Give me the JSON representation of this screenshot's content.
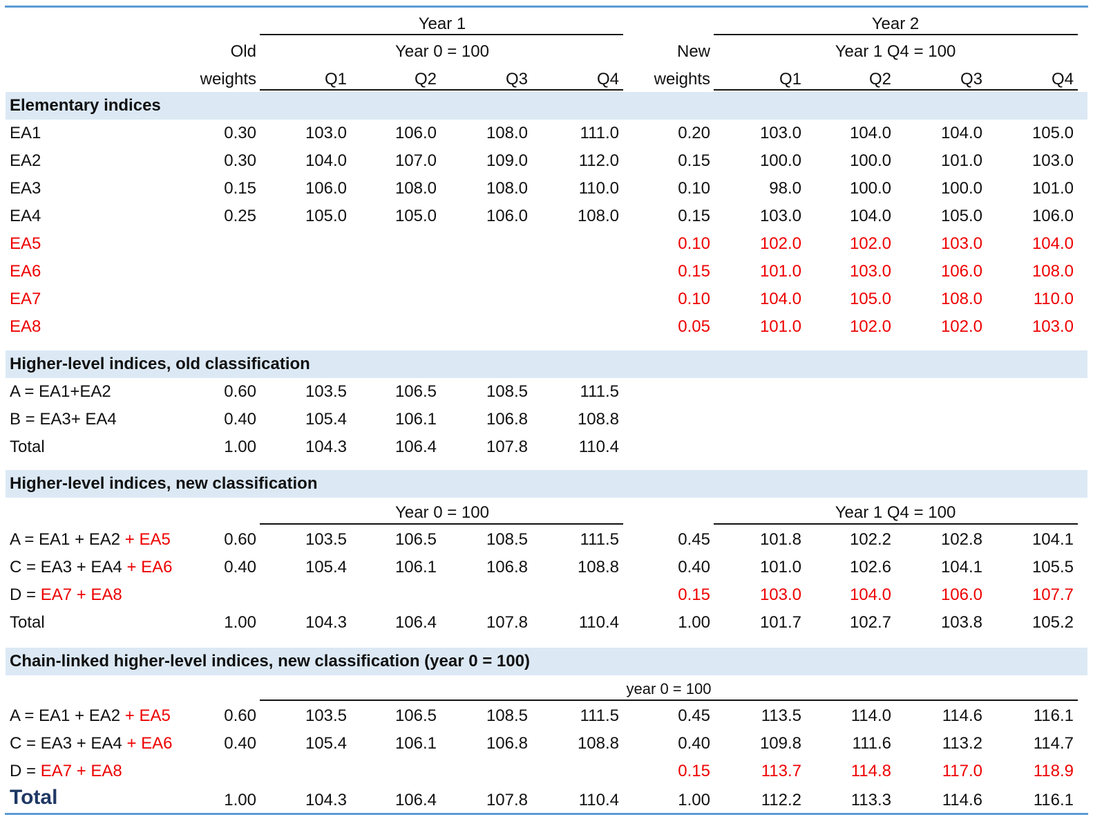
{
  "header": {
    "year1": "Year 1",
    "year2": "Year 2",
    "old_weights_1": "Old",
    "old_weights_2": "weights",
    "new_weights_1": "New",
    "new_weights_2": "weights",
    "base_year0": "Year 0 = 100",
    "base_year1q4": "Year 1 Q4 = 100",
    "quarters": [
      "Q1",
      "Q2",
      "Q3",
      "Q4"
    ]
  },
  "sections": {
    "elementary": "Elementary indices",
    "old_class": "Higher-level indices, old classification",
    "new_class": "Higher-level indices, new classification",
    "chain": "Chain-linked higher-level indices, new classification (year 0 = 100)",
    "chain_base": "year 0 = 100"
  },
  "elementary_rows": [
    {
      "label": "EA1",
      "w_old": "0.30",
      "y1": [
        "103.0",
        "106.0",
        "108.0",
        "111.0"
      ],
      "w_new": "0.20",
      "y2": [
        "103.0",
        "104.0",
        "104.0",
        "105.0"
      ]
    },
    {
      "label": "EA2",
      "w_old": "0.30",
      "y1": [
        "104.0",
        "107.0",
        "109.0",
        "112.0"
      ],
      "w_new": "0.15",
      "y2": [
        "100.0",
        "100.0",
        "101.0",
        "103.0"
      ]
    },
    {
      "label": "EA3",
      "w_old": "0.15",
      "y1": [
        "106.0",
        "108.0",
        "108.0",
        "110.0"
      ],
      "w_new": "0.10",
      "y2": [
        "98.0",
        "100.0",
        "100.0",
        "101.0"
      ]
    },
    {
      "label": "EA4",
      "w_old": "0.25",
      "y1": [
        "105.0",
        "105.0",
        "106.0",
        "108.0"
      ],
      "w_new": "0.15",
      "y2": [
        "103.0",
        "104.0",
        "105.0",
        "106.0"
      ]
    },
    {
      "label": "EA5",
      "w_new": "0.10",
      "y2": [
        "102.0",
        "102.0",
        "103.0",
        "104.0"
      ]
    },
    {
      "label": "EA6",
      "w_new": "0.15",
      "y2": [
        "101.0",
        "103.0",
        "106.0",
        "108.0"
      ]
    },
    {
      "label": "EA7",
      "w_new": "0.10",
      "y2": [
        "104.0",
        "105.0",
        "108.0",
        "110.0"
      ]
    },
    {
      "label": "EA8",
      "w_new": "0.05",
      "y2": [
        "101.0",
        "102.0",
        "102.0",
        "103.0"
      ]
    }
  ],
  "old_class_rows": [
    {
      "label": "A = EA1+EA2",
      "w_old": "0.60",
      "y1": [
        "103.5",
        "106.5",
        "108.5",
        "111.5"
      ]
    },
    {
      "label": "B = EA3+ EA4",
      "w_old": "0.40",
      "y1": [
        "105.4",
        "106.1",
        "106.8",
        "108.8"
      ]
    },
    {
      "label": "Total",
      "w_old": "1.00",
      "y1": [
        "104.3",
        "106.4",
        "107.8",
        "110.4"
      ]
    }
  ],
  "new_class_rows": [
    {
      "label_a": "A = EA1 + EA2 ",
      "label_b": "+ EA5",
      "w_old": "0.60",
      "y1": [
        "103.5",
        "106.5",
        "108.5",
        "111.5"
      ],
      "w_new": "0.45",
      "y2": [
        "101.8",
        "102.2",
        "102.8",
        "104.1"
      ]
    },
    {
      "label_a": "C = EA3 + EA4 ",
      "label_b": "+ EA6",
      "w_old": "0.40",
      "y1": [
        "105.4",
        "106.1",
        "106.8",
        "108.8"
      ],
      "w_new": "0.40",
      "y2": [
        "101.0",
        "102.6",
        "104.1",
        "105.5"
      ]
    },
    {
      "label_a": "D = ",
      "label_b": "EA7 + EA8",
      "w_new": "0.15",
      "y2": [
        "103.0",
        "104.0",
        "106.0",
        "107.7"
      ]
    },
    {
      "label_a": "Total",
      "label_b": "",
      "w_old": "1.00",
      "y1": [
        "104.3",
        "106.4",
        "107.8",
        "110.4"
      ],
      "w_new": "1.00",
      "y2": [
        "101.7",
        "102.7",
        "103.8",
        "105.2"
      ]
    }
  ],
  "chain_rows": [
    {
      "label_a": "A = EA1 + EA2 ",
      "label_b": "+ EA5",
      "w_old": "0.60",
      "y1": [
        "103.5",
        "106.5",
        "108.5",
        "111.5"
      ],
      "w_new": "0.45",
      "y2": [
        "113.5",
        "114.0",
        "114.6",
        "116.1"
      ]
    },
    {
      "label_a": "C = EA3 + EA4 ",
      "label_b": "+ EA6",
      "w_old": "0.40",
      "y1": [
        "105.4",
        "106.1",
        "106.8",
        "108.8"
      ],
      "w_new": "0.40",
      "y2": [
        "109.8",
        "111.6",
        "113.2",
        "114.7"
      ]
    },
    {
      "label_a": "D = ",
      "label_b": "EA7 + EA8",
      "w_new": "0.15",
      "y2": [
        "113.7",
        "114.8",
        "117.0",
        "118.9"
      ]
    },
    {
      "label_a": "Total",
      "label_b": "",
      "w_old": "1.00",
      "y1": [
        "104.3",
        "106.4",
        "107.8",
        "110.4"
      ],
      "w_new": "1.00",
      "y2": [
        "112.2",
        "113.3",
        "114.6",
        "116.1"
      ]
    }
  ],
  "colors": {
    "accent_rule": "#5b9bd5",
    "band": "#dce9f5",
    "highlight": "#ee0000",
    "total_title": "#1f3864"
  }
}
